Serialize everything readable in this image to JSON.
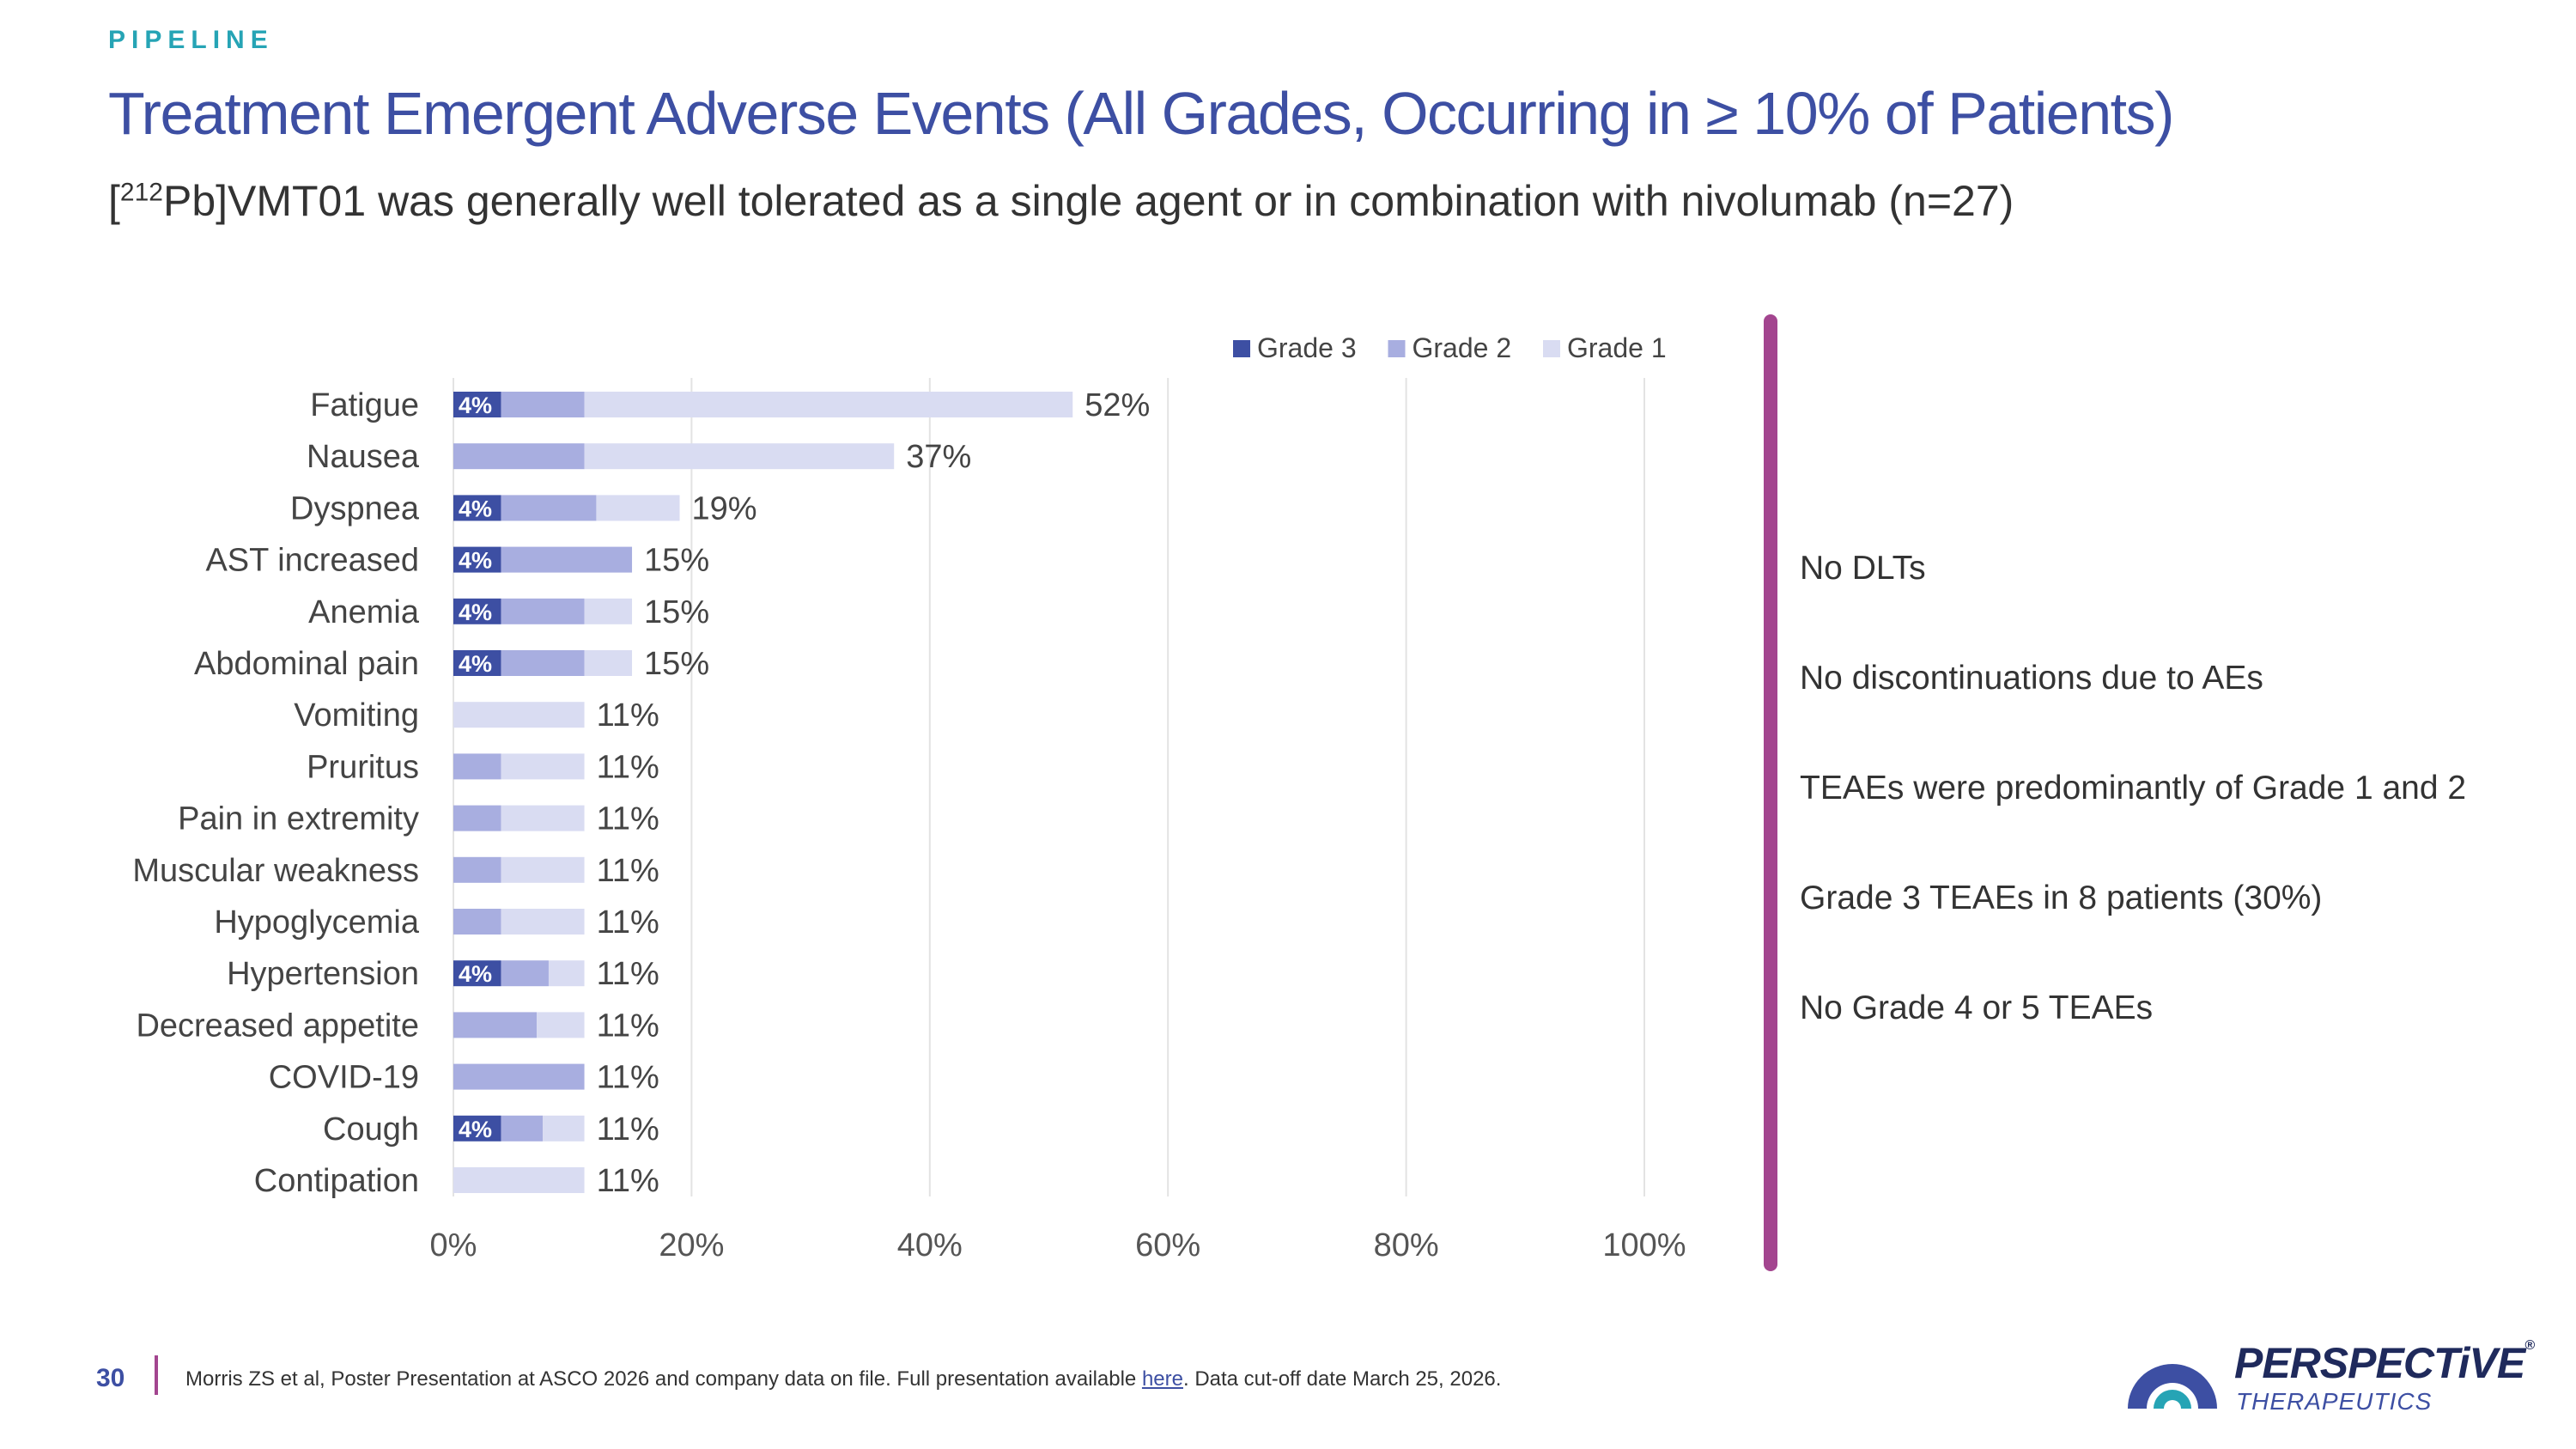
{
  "header": {
    "section": "PIPELINE",
    "title": "Treatment Emergent Adverse Events (All Grades, Occurring in ≥ 10% of Patients)",
    "subtitle_sup": "212",
    "subtitle_pre": "[",
    "subtitle_post": "Pb]VMT01 was generally well tolerated as a single agent or in combination with nivolumab (n=27)"
  },
  "chart_data": {
    "type": "bar",
    "orientation": "horizontal",
    "stacked": true,
    "categories": [
      "Fatigue",
      "Nausea",
      "Dyspnea",
      "AST increased",
      "Anemia",
      "Abdominal pain",
      "Vomiting",
      "Pruritus",
      "Pain in extremity",
      "Muscular weakness",
      "Hypoglycemia",
      "Hypertension",
      "Decreased appetite",
      "COVID-19",
      "Cough",
      "Contipation"
    ],
    "series": [
      {
        "name": "Grade 3",
        "color": "#3d4fa3",
        "values": [
          4,
          0,
          4,
          4,
          4,
          4,
          0,
          0,
          0,
          0,
          0,
          4,
          0,
          0,
          4,
          0
        ],
        "labels": [
          "4%",
          "",
          "4%",
          "4%",
          "4%",
          "4%",
          "",
          "",
          "",
          "",
          "",
          "4%",
          "",
          "",
          "4%",
          ""
        ]
      },
      {
        "name": "Grade 2",
        "color": "#a8aee0",
        "values": [
          7,
          11,
          8,
          11,
          7,
          7,
          0,
          4,
          4,
          4,
          4,
          4,
          7,
          11,
          3.5,
          0
        ]
      },
      {
        "name": "Grade 1",
        "color": "#d9dcf2",
        "values": [
          41,
          26,
          7,
          0,
          4,
          4,
          11,
          7,
          7,
          7,
          7,
          3,
          4,
          0,
          3.5,
          11
        ]
      }
    ],
    "totals": [
      "52%",
      "37%",
      "19%",
      "15%",
      "15%",
      "15%",
      "11%",
      "11%",
      "11%",
      "11%",
      "11%",
      "11%",
      "11%",
      "11%",
      "11%",
      "11%"
    ],
    "xlim": [
      0,
      100
    ],
    "xticks": [
      "0%",
      "20%",
      "40%",
      "60%",
      "80%",
      "100%"
    ],
    "grid": true,
    "legend_position": "top-right"
  },
  "bullets": [
    "No DLTs",
    "No discontinuations due to AEs",
    "TEAEs were predominantly of Grade 1 and 2",
    "Grade 3 TEAEs in 8 patients (30%)",
    "No Grade 4  or 5 TEAEs"
  ],
  "footer": {
    "page": "30",
    "text_pre": "Morris ZS et al, Poster Presentation at ASCO 2026 and company data on file. Full presentation available ",
    "link": "here",
    "text_post": ". Data cut-off date March 25, 2026."
  },
  "logo": {
    "name": "PERSPECTiVE",
    "reg": "®",
    "sub": "THERAPEUTICS"
  }
}
